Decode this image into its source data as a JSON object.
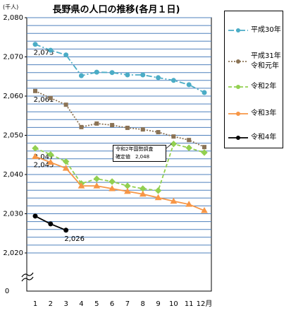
{
  "chart_data": {
    "type": "line",
    "title": "長野県の人口の推移(各月１日)",
    "unit_label": "(千人)",
    "axis_break_label": "0",
    "annotation": "令和2年国勢調査\n確定値　2,048",
    "categories": [
      "1",
      "2",
      "3",
      "4",
      "5",
      "6",
      "7",
      "8",
      "9",
      "10",
      "11",
      "12月"
    ],
    "ylim": [
      2020,
      2080
    ],
    "yticks": [
      {
        "value": 2020,
        "label": "2,020"
      },
      {
        "value": 2030,
        "label": "2,030"
      },
      {
        "value": 2040,
        "label": "2,040"
      },
      {
        "value": 2050,
        "label": "2,050"
      },
      {
        "value": 2060,
        "label": "2,060"
      },
      {
        "value": 2070,
        "label": "2,070"
      },
      {
        "value": 2080,
        "label": "2,080"
      }
    ],
    "minor_yticks": [
      2020,
      2022,
      2024,
      2026,
      2028,
      2030,
      2032,
      2034,
      2036,
      2038,
      2040,
      2042,
      2044,
      2046,
      2048,
      2050,
      2052,
      2054,
      2056,
      2058,
      2060,
      2062,
      2064,
      2066,
      2068,
      2070,
      2072,
      2074,
      2076,
      2078,
      2080
    ],
    "grid": true,
    "series": [
      {
        "name": "平成30年",
        "color": "#4bacc6",
        "dash": "8,3,2,3",
        "marker": "circle",
        "values": [
          2073.2,
          2071.7,
          2070.5,
          2065.2,
          2066.1,
          2066.0,
          2065.4,
          2065.4,
          2064.7,
          2064.0,
          2062.9,
          2060.9
        ],
        "value_labels": [
          "2,073",
          null,
          null,
          null,
          null,
          null,
          null,
          null,
          null,
          null,
          null,
          null
        ]
      },
      {
        "name": "平成31年\n令和元年",
        "color": "#8b7355",
        "dash": "2,2",
        "marker": "square",
        "values": [
          2061.3,
          2059.5,
          2057.8,
          2052.1,
          2053.0,
          2052.6,
          2051.9,
          2051.5,
          2050.8,
          2049.7,
          2048.8,
          2047.0
        ],
        "value_labels": [
          "2,061",
          null,
          null,
          null,
          null,
          null,
          null,
          null,
          null,
          null,
          null,
          null
        ]
      },
      {
        "name": "令和2年",
        "color": "#92d050",
        "dash": "5,3",
        "marker": "diamond",
        "values": [
          2046.7,
          2045.1,
          2043.3,
          2037.7,
          2038.9,
          2038.2,
          2037.1,
          2036.4,
          2035.9,
          2047.8,
          2046.8,
          2045.6
        ],
        "value_labels": [
          "2,047",
          null,
          null,
          null,
          null,
          null,
          null,
          null,
          null,
          null,
          null,
          null
        ]
      },
      {
        "name": "令和3年",
        "color": "#f79646",
        "dash": "",
        "marker": "triangle",
        "values": [
          2044.6,
          2043.1,
          2041.6,
          2037.1,
          2037.1,
          2036.4,
          2035.7,
          2035.0,
          2034.1,
          2033.2,
          2032.4,
          2030.8
        ],
        "value_labels": [
          "2,045",
          null,
          null,
          null,
          null,
          null,
          null,
          null,
          null,
          null,
          null,
          null
        ]
      },
      {
        "name": "令和4年",
        "color": "#000000",
        "dash": "",
        "marker": "circle",
        "values": [
          2029.4,
          2027.4,
          2025.8,
          null,
          null,
          null,
          null,
          null,
          null,
          null,
          null,
          null
        ],
        "value_labels": [
          null,
          null,
          "2,026",
          null,
          null,
          null,
          null,
          null,
          null,
          null,
          null,
          null
        ]
      }
    ]
  }
}
